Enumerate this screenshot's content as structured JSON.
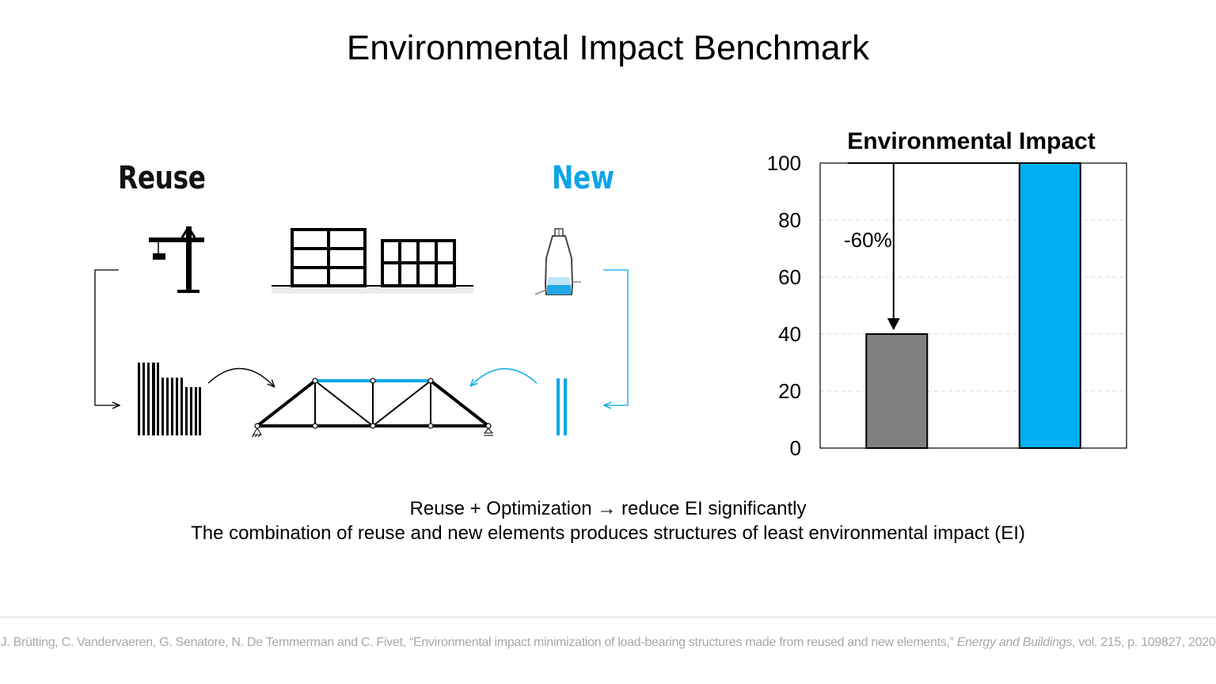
{
  "title": "Environmental Impact Benchmark",
  "labels": {
    "reuse": "Reuse",
    "new": "New"
  },
  "colors": {
    "accent": "#00a8e8",
    "bar_reuse": "#808080",
    "text": "#000000"
  },
  "icons": [
    "crane-icon",
    "existing-buildings-icon",
    "steel-furnace-icon",
    "reclaimed-elements-stock-icon",
    "new-elements-icon",
    "truss-structure-icon"
  ],
  "chart_data": {
    "type": "bar",
    "title": "Environmental Impact",
    "categories": [
      "",
      ""
    ],
    "values": [
      40,
      100
    ],
    "colors": [
      "#808080",
      "#00b0f0"
    ],
    "ylim": [
      0,
      100
    ],
    "yticks": [
      "100",
      "80",
      "60",
      "40",
      "20",
      "0"
    ],
    "grid": true,
    "annotations": [
      {
        "text": "-60%",
        "from": 100,
        "to": 40
      }
    ]
  },
  "captions": {
    "line1": "Reuse + Optimization → reduce EI significantly",
    "line2": "The combination of reuse and new elements produces structures of least environmental impact (EI)"
  },
  "citation": {
    "authors": "J. Brütting, C. Vandervaeren, G. Senatore, N. De Temmerman and C. Fivet, “Environmental impact minimization of load-bearing structures made from reused and new elements,”",
    "journal": "Energy and Buildings",
    "details": ", vol. 215, p. 109827, 2020"
  }
}
